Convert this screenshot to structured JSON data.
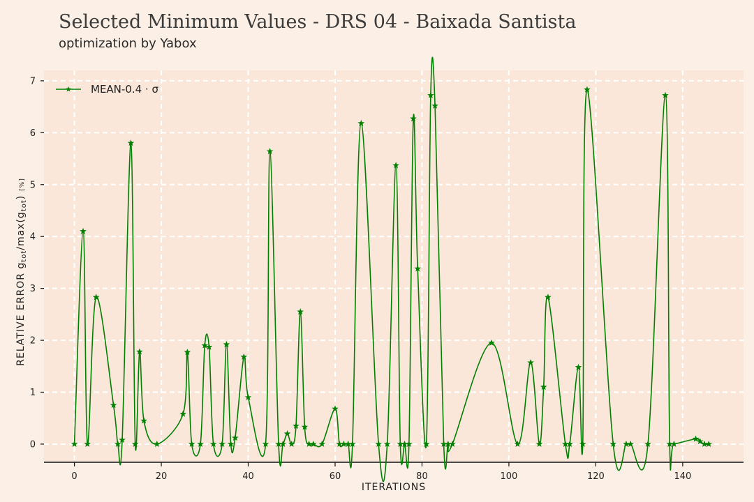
{
  "chart_data": {
    "type": "line",
    "title": "Selected Minimum Values - DRS 04 - Baixada Santista",
    "subtitle": "optimization by Yabox",
    "xlabel": "ITERATIONS",
    "ylabel_main": "RELATIVE ERROR g",
    "ylabel_sub1": "tot",
    "ylabel_mid": "/max(g",
    "ylabel_sub2": "tot",
    "ylabel_end": ")",
    "ylabel_unit": "[%]",
    "xlim": [
      -7,
      154
    ],
    "ylim": [
      -0.35,
      7.2
    ],
    "xticks": [
      0,
      20,
      40,
      60,
      80,
      100,
      120,
      140
    ],
    "yticks": [
      0,
      1,
      2,
      3,
      4,
      5,
      6,
      7
    ],
    "grid": true,
    "legend_position": "top-left",
    "series": [
      {
        "name": "MEAN-0.4 · σ",
        "color": "#008000",
        "marker": "star",
        "x": [
          0,
          2,
          3,
          5,
          9,
          10,
          11,
          13,
          14,
          15,
          16,
          19,
          25,
          26,
          27,
          29,
          30,
          31,
          32,
          34,
          35,
          36,
          37,
          39,
          40,
          44,
          45,
          47,
          48,
          49,
          50,
          51,
          52,
          53,
          54,
          55,
          57,
          60,
          61,
          62,
          63,
          64,
          66,
          70,
          72,
          74,
          75,
          76,
          77,
          78,
          79,
          81,
          82,
          83,
          85,
          86,
          87,
          96,
          102,
          105,
          107,
          108,
          109,
          113,
          114,
          116,
          117,
          118,
          124,
          127,
          128,
          132,
          136,
          137,
          138,
          143,
          144,
          145,
          146
        ],
        "y": [
          0,
          4.1,
          0,
          2.83,
          0.75,
          0,
          0.08,
          5.8,
          0,
          1.78,
          0.45,
          0,
          0.58,
          1.77,
          0,
          0,
          1.9,
          1.87,
          0,
          0,
          1.92,
          0,
          0.12,
          1.68,
          0.9,
          0,
          5.64,
          0,
          0,
          0.2,
          0,
          0.35,
          2.55,
          0.33,
          0,
          0,
          0,
          0.68,
          0,
          0,
          0,
          0,
          6.18,
          0,
          0,
          5.37,
          0,
          0,
          0,
          6.27,
          3.38,
          0,
          6.72,
          6.52,
          0,
          0,
          0,
          1.95,
          0,
          1.57,
          0,
          1.1,
          2.83,
          0,
          0,
          1.48,
          0,
          6.83,
          0,
          0,
          0,
          0,
          6.72,
          0,
          0,
          0.1,
          0.05,
          0,
          0
        ]
      }
    ]
  }
}
